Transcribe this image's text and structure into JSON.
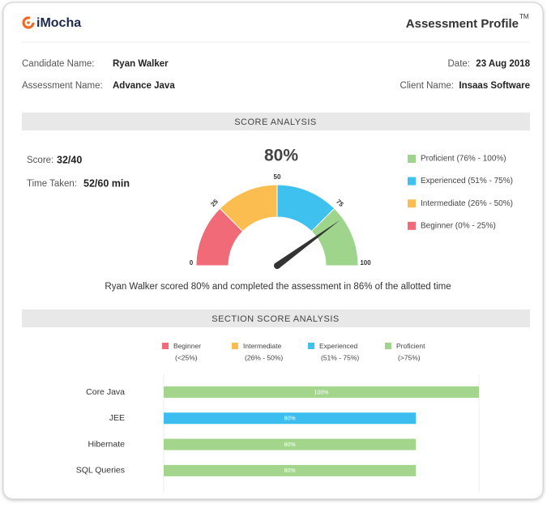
{
  "header": {
    "logo": "iMocha",
    "title": "Assessment Profile",
    "trademark": "TM"
  },
  "details": {
    "candidate_label": "Candidate Name:",
    "candidate": "Ryan Walker",
    "date_label": "Date:",
    "date": "23 Aug 2018",
    "assessment_label": "Assessment Name:",
    "assessment": "Advance Java",
    "client_label": "Client Name:",
    "client": "Insaas Software"
  },
  "score_analysis": {
    "heading": "SCORE ANALYSIS",
    "score_label": "Score:",
    "score": "32/40",
    "time_label": "Time Taken:",
    "time": "52/60 min",
    "gauge": {
      "value": 80,
      "value_label": "80%",
      "ticks": [
        0,
        25,
        50,
        75,
        100
      ],
      "colors": [
        "#f06b77",
        "#fbbd4f",
        "#3ec1ee",
        "#9ed48b"
      ]
    },
    "legend": [
      {
        "label": "Proficient (76% - 100%)",
        "color": "#9ed48b"
      },
      {
        "label": "Experienced (51% - 75%)",
        "color": "#3ec1ee"
      },
      {
        "label": "Intermediate (26% - 50%)",
        "color": "#fbbd4f"
      },
      {
        "label": "Beginner (0% - 25%)",
        "color": "#f06b77"
      }
    ],
    "summary": "Ryan Walker scored 80% and completed the assessment in 86% of the allotted time"
  },
  "section_score_analysis": {
    "heading": "SECTION SCORE ANALYSIS",
    "legend": [
      {
        "name": "Beginner",
        "range": "(<25%)",
        "color": "#f06b77"
      },
      {
        "name": "Intermediate",
        "range": "(26% - 50%)",
        "color": "#fbbd4f"
      },
      {
        "name": "Experienced",
        "range": "(51% - 75%)",
        "color": "#3ec1ee"
      },
      {
        "name": "Proficient",
        "range": "(>75%)",
        "color": "#9ed48b"
      }
    ],
    "chart": {
      "type": "bar",
      "categories": [
        "Core Java",
        "JEE",
        "Hibernate",
        "SQL Queries"
      ],
      "values": [
        100,
        80,
        80,
        80
      ],
      "value_labels": [
        "100%",
        "80%",
        "80%",
        "80%"
      ],
      "colors": [
        "#a3d68c",
        "#3cbdf0",
        "#a3d68c",
        "#a3d68c"
      ],
      "xlim": [
        0,
        100
      ]
    }
  }
}
